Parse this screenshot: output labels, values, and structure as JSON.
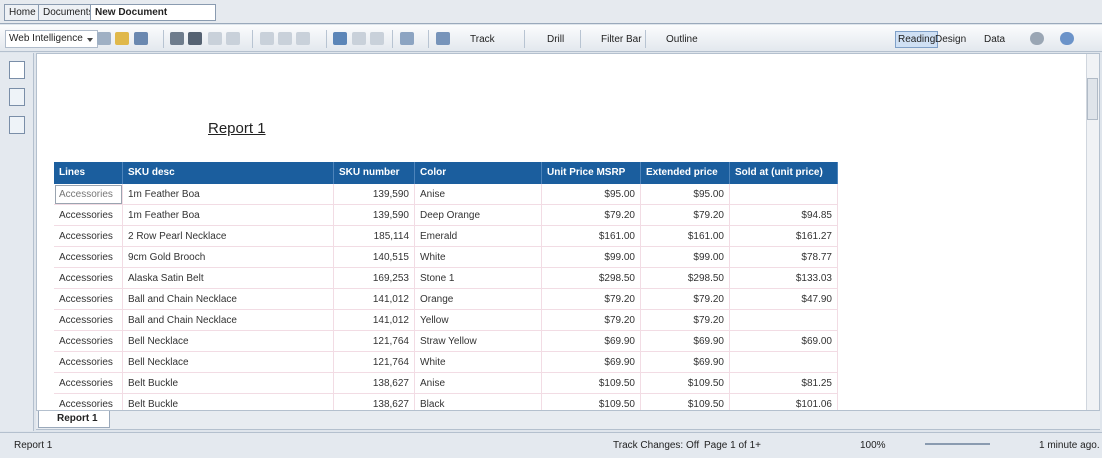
{
  "tabs": [
    "Home",
    "Documents",
    "New Document"
  ],
  "toolbar": {
    "app_menu": "Web Intelligence",
    "buttons": [
      "Track",
      "Drill",
      "Filter Bar",
      "Outline"
    ],
    "modes": [
      "Reading",
      "Design",
      "Data"
    ]
  },
  "report": {
    "title": "Report 1",
    "table": {
      "columns": [
        "Lines",
        "SKU desc",
        "SKU number",
        "Color",
        "Unit Price MSRP",
        "Extended price",
        "Sold at (unit price)"
      ],
      "rows": [
        [
          "Accessories",
          "1m Feather Boa",
          "139,590",
          "Anise",
          "$95.00",
          "$95.00",
          null
        ],
        [
          "Accessories",
          "1m Feather Boa",
          "139,590",
          "Deep Orange",
          "$79.20",
          "$79.20",
          "$94.85"
        ],
        [
          "Accessories",
          "2 Row Pearl Necklace",
          "185,114",
          "Emerald",
          "$161.00",
          "$161.00",
          "$161.27"
        ],
        [
          "Accessories",
          "9cm Gold Brooch",
          "140,515",
          "White",
          "$99.00",
          "$99.00",
          "$78.77"
        ],
        [
          "Accessories",
          "Alaska Satin Belt",
          "169,253",
          "Stone 1",
          "$298.50",
          "$298.50",
          "$133.03"
        ],
        [
          "Accessories",
          "Ball and Chain Necklace",
          "141,012",
          "Orange",
          "$79.20",
          "$79.20",
          "$47.90"
        ],
        [
          "Accessories",
          "Ball and Chain Necklace",
          "141,012",
          "Yellow",
          "$79.20",
          "$79.20",
          null
        ],
        [
          "Accessories",
          "Bell Necklace",
          "121,764",
          "Straw Yellow",
          "$69.90",
          "$69.90",
          "$69.00"
        ],
        [
          "Accessories",
          "Bell Necklace",
          "121,764",
          "White",
          "$69.90",
          "$69.90",
          null
        ],
        [
          "Accessories",
          "Belt Buckle",
          "138,627",
          "Anise",
          "$109.50",
          "$109.50",
          "$81.25"
        ],
        [
          "Accessories",
          "Belt Buckle",
          "138,627",
          "Black",
          "$109.50",
          "$109.50",
          "$101.06"
        ]
      ]
    }
  },
  "report_tab": "Report 1",
  "status": {
    "report_menu": "Report 1",
    "track_changes": "Track Changes: Off",
    "page": "Page 1 of 1+",
    "zoom": "100%",
    "saved": "1 minute ago."
  }
}
